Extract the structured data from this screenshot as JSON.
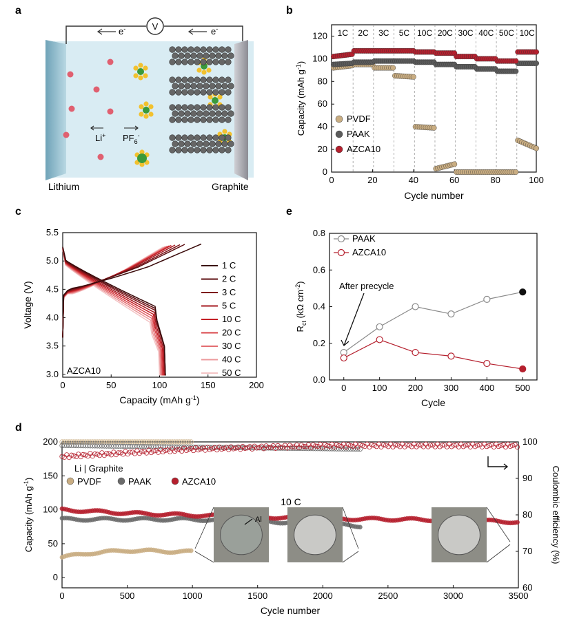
{
  "panels": {
    "a": {
      "letter": "a",
      "electrode_left": "Lithium",
      "electrode_right": "Graphite",
      "voltmeter": "V",
      "electron_left": "e",
      "electron_right": "e",
      "electron_sup": "-",
      "li_ion": "Li",
      "li_sup": "+",
      "pf6": "PF",
      "pf6_sub": "6",
      "pf6_sup": "-"
    },
    "b": {
      "letter": "b"
    },
    "c": {
      "letter": "c"
    },
    "e": {
      "letter": "e"
    },
    "d": {
      "letter": "d"
    }
  },
  "chart_data": [
    {
      "id": "b",
      "type": "scatter",
      "xlabel": "Cycle number",
      "ylabel": "Capacity (mAh g",
      "ylabel_sup": "-1",
      "ylabel_end": ")",
      "xlim": [
        0,
        100
      ],
      "ylim": [
        0,
        130
      ],
      "xticks": [
        "0",
        "20",
        "40",
        "60",
        "80",
        "100"
      ],
      "yticks": [
        "0",
        "20",
        "40",
        "60",
        "80",
        "100",
        "120"
      ],
      "rate_labels": [
        "1C",
        "2C",
        "3C",
        "5C",
        "10C",
        "20C",
        "30C",
        "40C",
        "50C",
        "10C"
      ],
      "legend_position": "bottom-left",
      "colors": {
        "PVDF": "#c9ad82",
        "PAAK": "#5b5b5b",
        "AZCA10": "#b5202e"
      },
      "series": [
        {
          "name": "PVDF",
          "segments": [
            [
              1,
              10,
              92,
              94
            ],
            [
              11,
              20,
              95,
              95
            ],
            [
              21,
              30,
              92,
              92
            ],
            [
              31,
              40,
              85,
              84
            ],
            [
              41,
              50,
              40,
              39
            ],
            [
              51,
              60,
              3,
              7
            ],
            [
              61,
              70,
              0,
              0
            ],
            [
              71,
              80,
              0,
              0
            ],
            [
              81,
              90,
              0,
              0
            ],
            [
              91,
              100,
              28,
              21
            ]
          ]
        },
        {
          "name": "PAAK",
          "segments": [
            [
              1,
              10,
              95,
              96
            ],
            [
              11,
              20,
              97,
              97
            ],
            [
              21,
              30,
              98,
              98
            ],
            [
              31,
              40,
              98,
              98
            ],
            [
              41,
              50,
              97,
              97
            ],
            [
              51,
              60,
              95,
              95
            ],
            [
              61,
              70,
              93,
              93
            ],
            [
              71,
              80,
              91,
              91
            ],
            [
              81,
              90,
              89,
              89
            ],
            [
              91,
              100,
              96,
              96
            ]
          ]
        },
        {
          "name": "AZCA10",
          "segments": [
            [
              1,
              10,
              102,
              104
            ],
            [
              11,
              20,
              107,
              107
            ],
            [
              21,
              30,
              107,
              107
            ],
            [
              31,
              40,
              107,
              107
            ],
            [
              41,
              50,
              106,
              106
            ],
            [
              51,
              60,
              105,
              105
            ],
            [
              61,
              70,
              102,
              102
            ],
            [
              71,
              80,
              100,
              100
            ],
            [
              81,
              90,
              98,
              98
            ],
            [
              91,
              100,
              106,
              106
            ]
          ]
        }
      ]
    },
    {
      "id": "c",
      "type": "line",
      "xlabel": "Capacity (mAh g",
      "xlabel_sup": "-1",
      "xlabel_end": ")",
      "ylabel": "Voltage (V)",
      "xlim": [
        0,
        200
      ],
      "ylim": [
        2.95,
        5.5
      ],
      "xticks": [
        "0",
        "50",
        "100",
        "150",
        "200"
      ],
      "yticks": [
        "3.0",
        "3.5",
        "4.0",
        "4.5",
        "5.0",
        "5.5"
      ],
      "annotation": "AZCA10",
      "legend_position": "right",
      "series": [
        {
          "name": "1 C",
          "color": "#3a0a0a",
          "charge_end": 143,
          "discharge_end": 106
        },
        {
          "name": "2 C",
          "color": "#5c0f12",
          "charge_end": 126,
          "discharge_end": 106
        },
        {
          "name": "3 C",
          "color": "#7d1418",
          "charge_end": 121,
          "discharge_end": 106
        },
        {
          "name": "5 C",
          "color": "#a4181f",
          "charge_end": 116,
          "discharge_end": 105
        },
        {
          "name": "10 C",
          "color": "#c42026",
          "charge_end": 112,
          "discharge_end": 104
        },
        {
          "name": "20 C",
          "color": "#d9454a",
          "charge_end": 110,
          "discharge_end": 103
        },
        {
          "name": "30 C",
          "color": "#e36d71",
          "charge_end": 108,
          "discharge_end": 102
        },
        {
          "name": "40 C",
          "color": "#ec9a9c",
          "charge_end": 106,
          "discharge_end": 101
        },
        {
          "name": "50 C",
          "color": "#f4c4c5",
          "charge_end": 104,
          "discharge_end": 100
        }
      ]
    },
    {
      "id": "e",
      "type": "line",
      "xlabel": "Cycle",
      "ylabel": "R",
      "ylabel_sub": "ct",
      "ylabel_mid": " (kΩ cm",
      "ylabel_sup": "-2",
      "ylabel_end": ")",
      "xlim": [
        -40,
        540
      ],
      "ylim": [
        0,
        0.8
      ],
      "xticks": [
        "0",
        "100",
        "200",
        "300",
        "400",
        "500"
      ],
      "yticks": [
        "0.0",
        "0.2",
        "0.4",
        "0.6",
        "0.8"
      ],
      "annotation": "After precycle",
      "legend_position": "top-left",
      "x": [
        0,
        100,
        200,
        300,
        400,
        500
      ],
      "series": [
        {
          "name": "PAAK",
          "color": "#8a8a8a",
          "values": [
            0.15,
            0.29,
            0.4,
            0.36,
            0.44,
            0.48
          ]
        },
        {
          "name": "AZCA10",
          "color": "#b5202e",
          "values": [
            0.12,
            0.22,
            0.15,
            0.13,
            0.09,
            0.06
          ]
        }
      ]
    },
    {
      "id": "d",
      "type": "scatter",
      "xlabel": "Cycle number",
      "ylabel_left": "Capacity (mAh g",
      "ylabel_left_sup": "-1",
      "ylabel_left_end": ")",
      "ylabel_right": "Coulombic efficiency (%)",
      "xlim": [
        0,
        3500
      ],
      "ylim_left": [
        -15,
        200
      ],
      "ylim_right": [
        60,
        100
      ],
      "xticks": [
        "0",
        "500",
        "1000",
        "1500",
        "2000",
        "2500",
        "3000",
        "3500"
      ],
      "yticks_left": [
        "0",
        "50",
        "100",
        "150",
        "200"
      ],
      "yticks_right": [
        "60",
        "70",
        "80",
        "90",
        "100"
      ],
      "cell_label": "Li | Graphite",
      "rate_label": "10 C",
      "photo_label": "Al",
      "legend_position": "top-left",
      "series": [
        {
          "name": "PVDF",
          "color": "#c9ad82",
          "capacity": [
            [
              0,
              30
            ],
            [
              200,
              36
            ],
            [
              500,
              40
            ],
            [
              1000,
              38
            ]
          ],
          "ce": [
            [
              0,
              100
            ],
            [
              1000,
              100
            ]
          ]
        },
        {
          "name": "PAAK",
          "color": "#6b6b6b",
          "capacity": [
            [
              0,
              86
            ],
            [
              1000,
              86
            ],
            [
              2000,
              80
            ],
            [
              2300,
              76
            ]
          ],
          "ce": [
            [
              0,
              99
            ],
            [
              2300,
              98
            ]
          ]
        },
        {
          "name": "AZCA10",
          "color": "#b5202e",
          "capacity": [
            [
              0,
              100
            ],
            [
              500,
              95
            ],
            [
              1000,
              92
            ],
            [
              2000,
              87
            ],
            [
              3000,
              85
            ],
            [
              3500,
              82
            ]
          ],
          "ce": [
            [
              0,
              96
            ],
            [
              1000,
              98
            ],
            [
              2000,
              99
            ],
            [
              3500,
              99
            ]
          ]
        }
      ]
    }
  ]
}
